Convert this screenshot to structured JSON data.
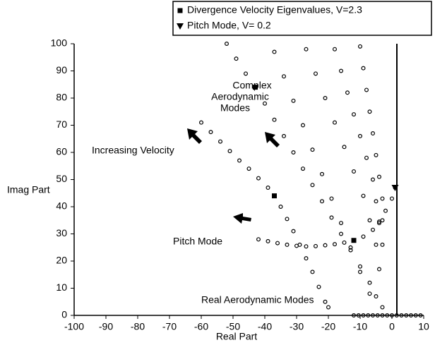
{
  "chart_data": {
    "type": "scatter",
    "xlabel": "Real Part",
    "ylabel": "Imag Part",
    "xlim": [
      -100,
      10
    ],
    "ylim": [
      0,
      100
    ],
    "xticks": [
      -100,
      -90,
      -80,
      -70,
      -60,
      -50,
      -40,
      -30,
      -20,
      -10,
      0,
      10
    ],
    "yticks": [
      0,
      10,
      20,
      30,
      40,
      50,
      60,
      70,
      80,
      90,
      100
    ],
    "legend": "top-right",
    "annotations": [
      "Complex",
      "Aerodynamic",
      "Modes",
      "Increasing Velocity",
      "Pitch Mode",
      "Real Aerodynamic Modes"
    ],
    "series": [
      {
        "x": [
          -60,
          -57,
          -54,
          -51,
          -48,
          -45,
          -42,
          -39,
          -37,
          -35,
          -33,
          -31,
          -29,
          -27,
          -25,
          -23,
          -21,
          -20
        ],
        "y": [
          71,
          67.5,
          64,
          60.5,
          57,
          54,
          50.5,
          47,
          44,
          40,
          35.5,
          31,
          26,
          21,
          16,
          10.5,
          5,
          3
        ],
        "marker": "circle-open",
        "color": "#000000"
      },
      {
        "x": [
          -52,
          -49,
          -46,
          -43,
          -40,
          -37,
          -34,
          -31,
          -28,
          -25,
          -22,
          -19,
          -16,
          -13,
          -10,
          -7,
          -5,
          -3
        ],
        "y": [
          100,
          94.5,
          89,
          84,
          78,
          72,
          66,
          60,
          54,
          48,
          42,
          36,
          30,
          24,
          18,
          12,
          7,
          3
        ],
        "marker": "circle-open",
        "color": "#000000"
      },
      {
        "x": [
          -37,
          -34,
          -31,
          -28,
          -25,
          -22,
          -19,
          -16,
          -13,
          -10,
          -7
        ],
        "y": [
          97,
          88,
          79,
          70,
          61,
          52,
          43,
          34,
          25,
          16,
          8
        ],
        "marker": "circle-open",
        "color": "#000000"
      },
      {
        "x": [
          -27,
          -24,
          -21,
          -18,
          -15,
          -12,
          -9,
          -7,
          -5,
          -4
        ],
        "y": [
          98,
          89,
          80,
          71,
          62,
          53,
          44,
          35,
          26,
          17
        ],
        "marker": "circle-open",
        "color": "#000000"
      },
      {
        "x": [
          -18,
          -16,
          -14,
          -12,
          -10,
          -8,
          -6,
          -5,
          -4,
          -3
        ],
        "y": [
          98,
          90,
          82,
          74,
          66,
          58,
          50,
          42,
          34,
          26
        ],
        "marker": "circle-open",
        "color": "#000000"
      },
      {
        "x": [
          -10,
          -9,
          -8,
          -7,
          -6,
          -5,
          -4,
          -3,
          -3
        ],
        "y": [
          99,
          91,
          83,
          75,
          67,
          59,
          51,
          43,
          35
        ],
        "marker": "circle-open",
        "color": "#000000"
      },
      {
        "x": [
          -42,
          -39,
          -36,
          -33,
          -30,
          -27,
          -24,
          -21,
          -18,
          -15,
          -12,
          -9,
          -6,
          -4,
          -2,
          0,
          1
        ],
        "y": [
          28,
          27.3,
          26.6,
          26,
          25.6,
          25.4,
          25.5,
          25.8,
          26.2,
          26.8,
          27.6,
          29,
          31.5,
          34.5,
          38.5,
          43,
          47
        ],
        "marker": "circle-open",
        "color": "#000000"
      },
      {
        "x": [
          -12,
          -10.5,
          -9,
          -7.5,
          -6,
          -4.5,
          -3,
          -1.5,
          0,
          1.5,
          3,
          4.5,
          6,
          7.5,
          9
        ],
        "y": [
          0,
          0,
          0,
          0,
          0,
          0,
          0,
          0,
          0,
          0,
          0,
          0,
          0,
          0,
          0
        ],
        "marker": "circle-open",
        "color": "#000000"
      },
      {
        "name": "Divergence Velocity Eigenvalues, V=2.3",
        "x": [
          -43,
          -37,
          -12
        ],
        "y": [
          84,
          44,
          27.6
        ],
        "marker": "square",
        "color": "#000000"
      },
      {
        "name": "Pitch Mode, V= 0.2",
        "x": [
          1
        ],
        "y": [
          47
        ],
        "marker": "triangle",
        "color": "#000000"
      }
    ]
  }
}
